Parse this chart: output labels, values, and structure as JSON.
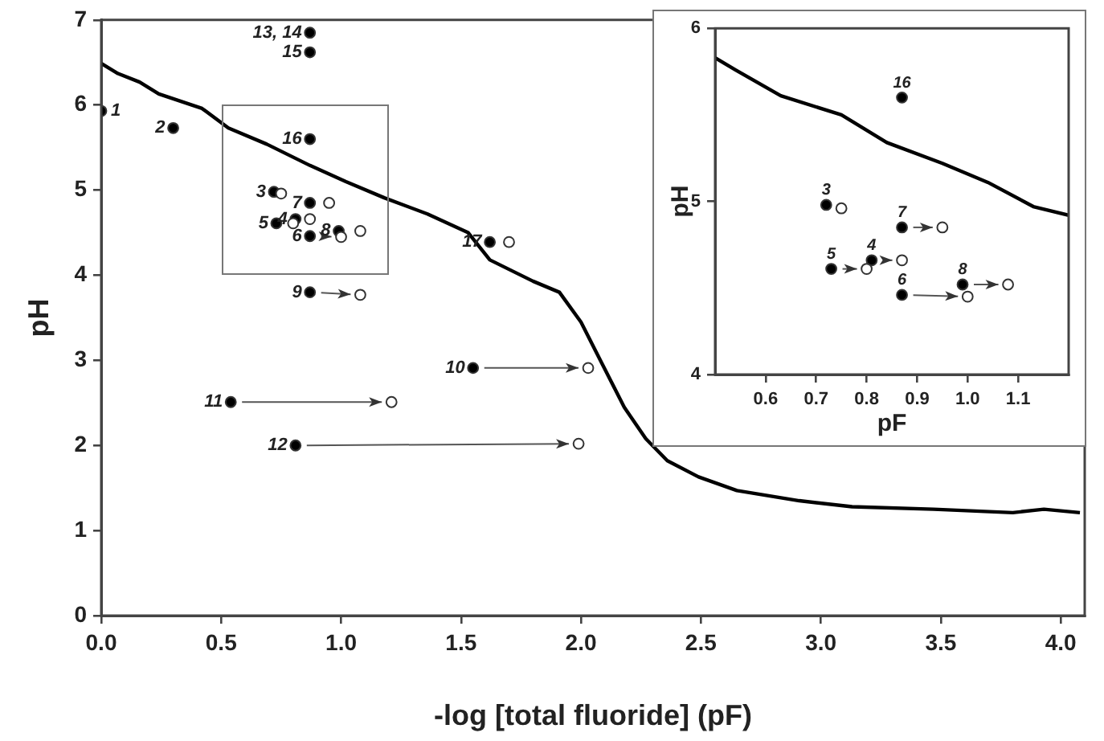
{
  "chart_data": [
    {
      "type": "scatter",
      "xlabel": "-log [total fluoride] (pF)",
      "ylabel": "pH",
      "xlim": [
        0,
        4.1
      ],
      "ylim": [
        0,
        7
      ],
      "xticks": [
        {
          "value": 0,
          "label": "0.0"
        },
        {
          "value": 0.5,
          "label": "0.5"
        },
        {
          "value": 1,
          "label": "1.0"
        },
        {
          "value": 1.5,
          "label": "1.5"
        },
        {
          "value": 2,
          "label": "2.0"
        },
        {
          "value": 2.5,
          "label": "2.5"
        },
        {
          "value": 3,
          "label": "3.0"
        },
        {
          "value": 3.5,
          "label": "3.5"
        },
        {
          "value": 4,
          "label": "4.0"
        }
      ],
      "yticks": [
        0,
        1,
        2,
        3,
        4,
        5,
        6,
        7
      ],
      "grid": false,
      "legend": false,
      "series": [
        {
          "type": "line",
          "marker": "none",
          "color": "#000000",
          "x": [
            0,
            0.07,
            0.16,
            0.24,
            0.42,
            0.53,
            0.69,
            0.87,
            1.02,
            1.18,
            1.36,
            1.53,
            1.62,
            1.8,
            1.91,
            2.0,
            2.09,
            2.18,
            2.27,
            2.36,
            2.49,
            2.65,
            2.91,
            3.13,
            3.47,
            3.8,
            3.93,
            4.08
          ],
          "values": [
            6.49,
            6.37,
            6.27,
            6.13,
            5.96,
            5.73,
            5.54,
            5.29,
            5.1,
            4.91,
            4.72,
            4.5,
            4.18,
            3.93,
            3.8,
            3.45,
            2.95,
            2.45,
            2.08,
            1.82,
            1.63,
            1.47,
            1.35,
            1.28,
            1.25,
            1.21,
            1.25,
            1.21
          ]
        },
        {
          "type": "scatter",
          "marker": "circle",
          "color": "#000000",
          "x": [
            0,
            0.3,
            0.72,
            0.81,
            0.73,
            0.87,
            0.87,
            0.99,
            0.87,
            1.55,
            0.54,
            0.81,
            0.87,
            0.87,
            0.87,
            1.62
          ],
          "values": [
            5.93,
            5.73,
            4.98,
            4.66,
            4.61,
            4.46,
            4.85,
            4.52,
            3.8,
            2.91,
            2.51,
            2.0,
            6.85,
            6.62,
            5.6,
            4.39
          ]
        },
        {
          "type": "scatter",
          "marker": "circle",
          "color": "#ffffff",
          "x": [
            null,
            null,
            0.75,
            0.87,
            0.8,
            1.0,
            0.95,
            1.08,
            1.08,
            2.03,
            1.21,
            1.99,
            null,
            null,
            null,
            1.7
          ],
          "values": [
            null,
            null,
            4.96,
            4.66,
            4.61,
            4.45,
            4.85,
            4.52,
            3.77,
            2.91,
            2.51,
            2.02,
            null,
            null,
            null,
            4.39
          ]
        }
      ],
      "annotations": [
        {
          "text": "1",
          "x": 0,
          "y": 5.93
        },
        {
          "text": "2",
          "x": 0.3,
          "y": 5.73
        },
        {
          "text": "3",
          "x": 0.72,
          "y": 4.98
        },
        {
          "text": "4",
          "x": 0.81,
          "y": 4.66
        },
        {
          "text": "5",
          "x": 0.73,
          "y": 4.61
        },
        {
          "text": "6",
          "x": 0.87,
          "y": 4.46
        },
        {
          "text": "7",
          "x": 0.87,
          "y": 4.85
        },
        {
          "text": "8",
          "x": 0.99,
          "y": 4.52
        },
        {
          "text": "9",
          "x": 0.87,
          "y": 3.8
        },
        {
          "text": "10",
          "x": 1.55,
          "y": 2.91
        },
        {
          "text": "11",
          "x": 0.54,
          "y": 2.51
        },
        {
          "text": "12",
          "x": 0.81,
          "y": 2.0
        },
        {
          "text": "13, 14",
          "x": 0.87,
          "y": 6.85
        },
        {
          "text": "15",
          "x": 0.87,
          "y": 6.62
        },
        {
          "text": "16",
          "x": 0.87,
          "y": 5.6
        },
        {
          "text": "17",
          "x": 1.62,
          "y": 4.39
        }
      ]
    },
    {
      "type": "scatter",
      "xlabel": "pF",
      "ylabel": "pH",
      "xlim": [
        0.5,
        1.2
      ],
      "ylim": [
        4,
        6
      ],
      "xticks": [
        {
          "value": 0.6,
          "label": "0.6"
        },
        {
          "value": 0.7,
          "label": "0.7"
        },
        {
          "value": 0.8,
          "label": "0.8"
        },
        {
          "value": 0.9,
          "label": "0.9"
        },
        {
          "value": 1,
          "label": "1.0"
        },
        {
          "value": 1.1,
          "label": "1.1"
        }
      ],
      "yticks": [
        4,
        5,
        6
      ],
      "grid": false,
      "legend": false,
      "series": [
        {
          "type": "line",
          "marker": "none",
          "color": "#000000",
          "x": [
            0.5,
            0.54,
            0.63,
            0.75,
            0.84,
            0.95,
            1.04,
            1.13,
            1.2
          ],
          "values": [
            5.83,
            5.76,
            5.61,
            5.5,
            5.34,
            5.22,
            5.11,
            4.97,
            4.92
          ]
        },
        {
          "type": "scatter",
          "marker": "circle",
          "color": "#000000",
          "x": [
            0.72,
            0.81,
            0.73,
            0.87,
            0.87,
            0.99,
            0.87
          ],
          "values": [
            4.98,
            4.66,
            4.61,
            4.46,
            4.85,
            4.52,
            5.6
          ]
        },
        {
          "type": "scatter",
          "marker": "circle",
          "color": "#ffffff",
          "x": [
            0.75,
            0.87,
            0.8,
            1.0,
            0.95,
            1.08,
            null
          ],
          "values": [
            4.96,
            4.66,
            4.61,
            4.45,
            4.85,
            4.52,
            null
          ]
        }
      ],
      "annotations": [
        {
          "text": "3",
          "x": 0.72,
          "y": 4.98
        },
        {
          "text": "4",
          "x": 0.81,
          "y": 4.66
        },
        {
          "text": "5",
          "x": 0.73,
          "y": 4.61
        },
        {
          "text": "6",
          "x": 0.87,
          "y": 4.46
        },
        {
          "text": "7",
          "x": 0.87,
          "y": 4.85
        },
        {
          "text": "8",
          "x": 0.99,
          "y": 4.52
        },
        {
          "text": "16",
          "x": 0.87,
          "y": 5.6
        }
      ]
    }
  ]
}
